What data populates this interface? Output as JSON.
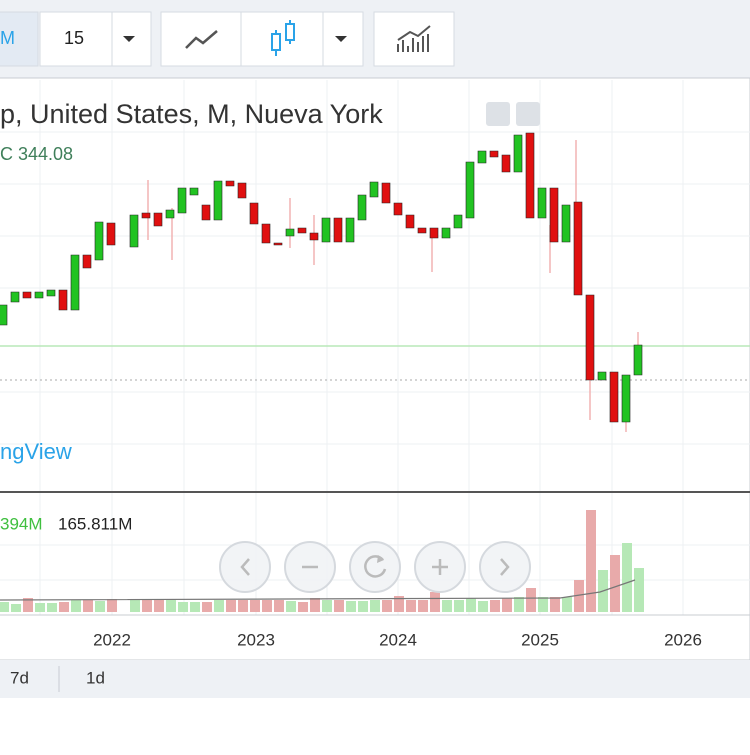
{
  "toolbar": {
    "interval_label": "M",
    "interval_value": "15"
  },
  "legend": {
    "title": "p, United States, M, Nueva York",
    "close": "C 344.08"
  },
  "watermark": "ngView",
  "volume_legend": {
    "first": "394M",
    "second": "165.811M"
  },
  "time_axis": [
    "2022",
    "2023",
    "2024",
    "2025",
    "2026"
  ],
  "ranges": [
    "7d",
    "1d"
  ]
}
